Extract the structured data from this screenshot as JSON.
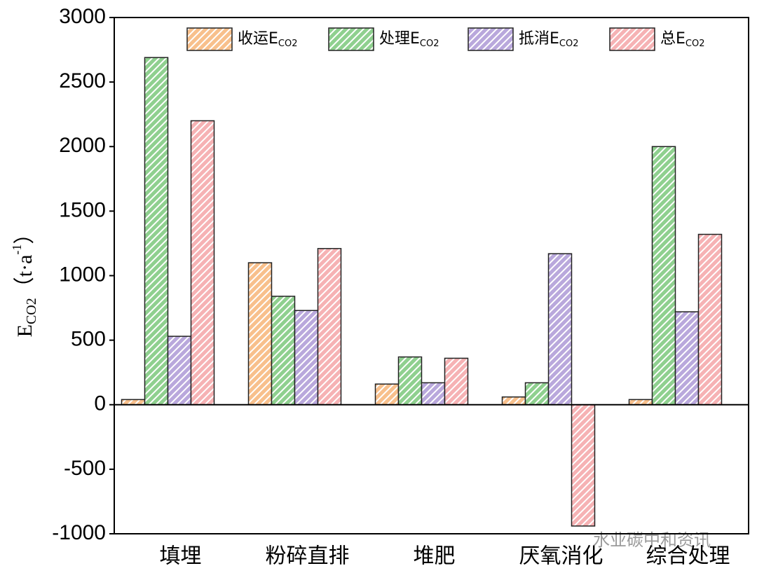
{
  "chart_data": {
    "type": "bar",
    "categories": [
      "填埋",
      "粉碎直排",
      "堆肥",
      "厌氧消化",
      "综合处理"
    ],
    "subscript": "CO2",
    "series": [
      {
        "name": "收运E",
        "color": "#f8c08c",
        "values": [
          40,
          1100,
          160,
          60,
          40
        ]
      },
      {
        "name": "处理E",
        "color": "#8fd08f",
        "values": [
          2690,
          840,
          370,
          170,
          2000
        ]
      },
      {
        "name": "抵消E",
        "color": "#b9a8dc",
        "values": [
          530,
          730,
          170,
          1170,
          720
        ]
      },
      {
        "name": "总E",
        "color": "#f6b2b4",
        "values": [
          2200,
          1210,
          360,
          -940,
          1320
        ]
      }
    ],
    "y_label": {
      "main": "E",
      "sub": "CO2",
      "unit": "（t·a",
      "sup": "-1",
      "close": "）"
    },
    "ylim": [
      -1000,
      3000
    ],
    "yticks": [
      -1000,
      -500,
      0,
      500,
      1000,
      1500,
      2000,
      2500,
      3000
    ],
    "legend": "top",
    "watermark": "水业碳中和资讯"
  }
}
